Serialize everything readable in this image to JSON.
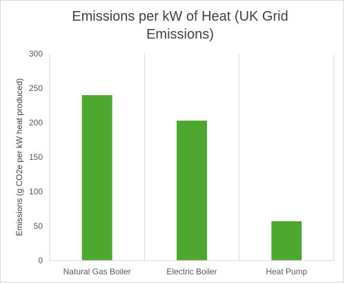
{
  "chart_data": {
    "type": "bar",
    "title": "Emissions per kW of Heat (UK Grid Emissions)",
    "xlabel": "",
    "ylabel": "Emissions (g CO2e per kW heat produced)",
    "categories": [
      "Natural Gas Boiler",
      "Electric Boiler",
      "Heat Pump"
    ],
    "series": [
      {
        "values": [
          240,
          203,
          57
        ]
      }
    ],
    "ylim": [
      0,
      300
    ],
    "yticks": [
      0,
      50,
      100,
      150,
      200,
      250,
      300
    ],
    "grid": "vertical category separators",
    "legend": "none",
    "bar_color": "#4ea72e"
  }
}
